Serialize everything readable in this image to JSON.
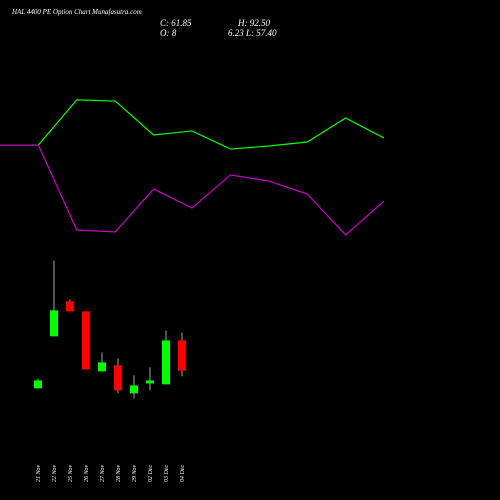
{
  "chart_data": [
    {
      "type": "line",
      "title": "HAL 4400 PE Option Chart Munafasutra.com",
      "x": [
        0,
        1,
        2,
        3,
        4,
        5,
        6,
        7,
        8,
        9,
        10
      ],
      "xlim": [
        0,
        10
      ],
      "ylim": [
        0,
        100
      ],
      "series": [
        {
          "color": "#00ff00",
          "values": [
            65.6,
            65.6,
            93.8,
            93.1,
            71.9,
            74.4,
            63.1,
            65,
            67.5,
            82.5,
            70
          ]
        },
        {
          "color": "#cc00cc",
          "values": [
            65.6,
            65.6,
            12.5,
            11.3,
            38.1,
            26.3,
            46.9,
            43.1,
            35,
            9.4,
            30.6
          ]
        }
      ]
    },
    {
      "type": "candlestick",
      "labels": [
        "C: 61.85",
        "H: 92.50",
        "O: 8",
        "6.23",
        "L: 57.40"
      ],
      "categories": [
        "21 Nov",
        "22 Nov",
        "25 Nov",
        "26 Nov",
        "27 Nov",
        "28 Nov",
        "29 Nov",
        "02 Dec",
        "03 Dec",
        "04 Dec"
      ],
      "open": [
        47.7,
        89.3,
        117.3,
        109.3,
        61.3,
        66.1,
        43.7,
        51.7,
        50.9,
        86.1
      ],
      "high": [
        55.7,
        150.1,
        118.9,
        109.3,
        76.5,
        71.7,
        58.1,
        64.5,
        94.1,
        92.5
      ],
      "low": [
        47.7,
        89.3,
        109.3,
        62.9,
        61.3,
        43.7,
        39.7,
        46.1,
        50.9,
        57.4
      ],
      "close": [
        54.1,
        110.1,
        109.3,
        62.9,
        68.5,
        46.1,
        50.1,
        54.1,
        86.1,
        61.85
      ],
      "ylim": [
        20,
        160
      ],
      "up_color": "#00ff00",
      "down_color": "#ff0000",
      "wick_color": "#cccccc"
    }
  ]
}
